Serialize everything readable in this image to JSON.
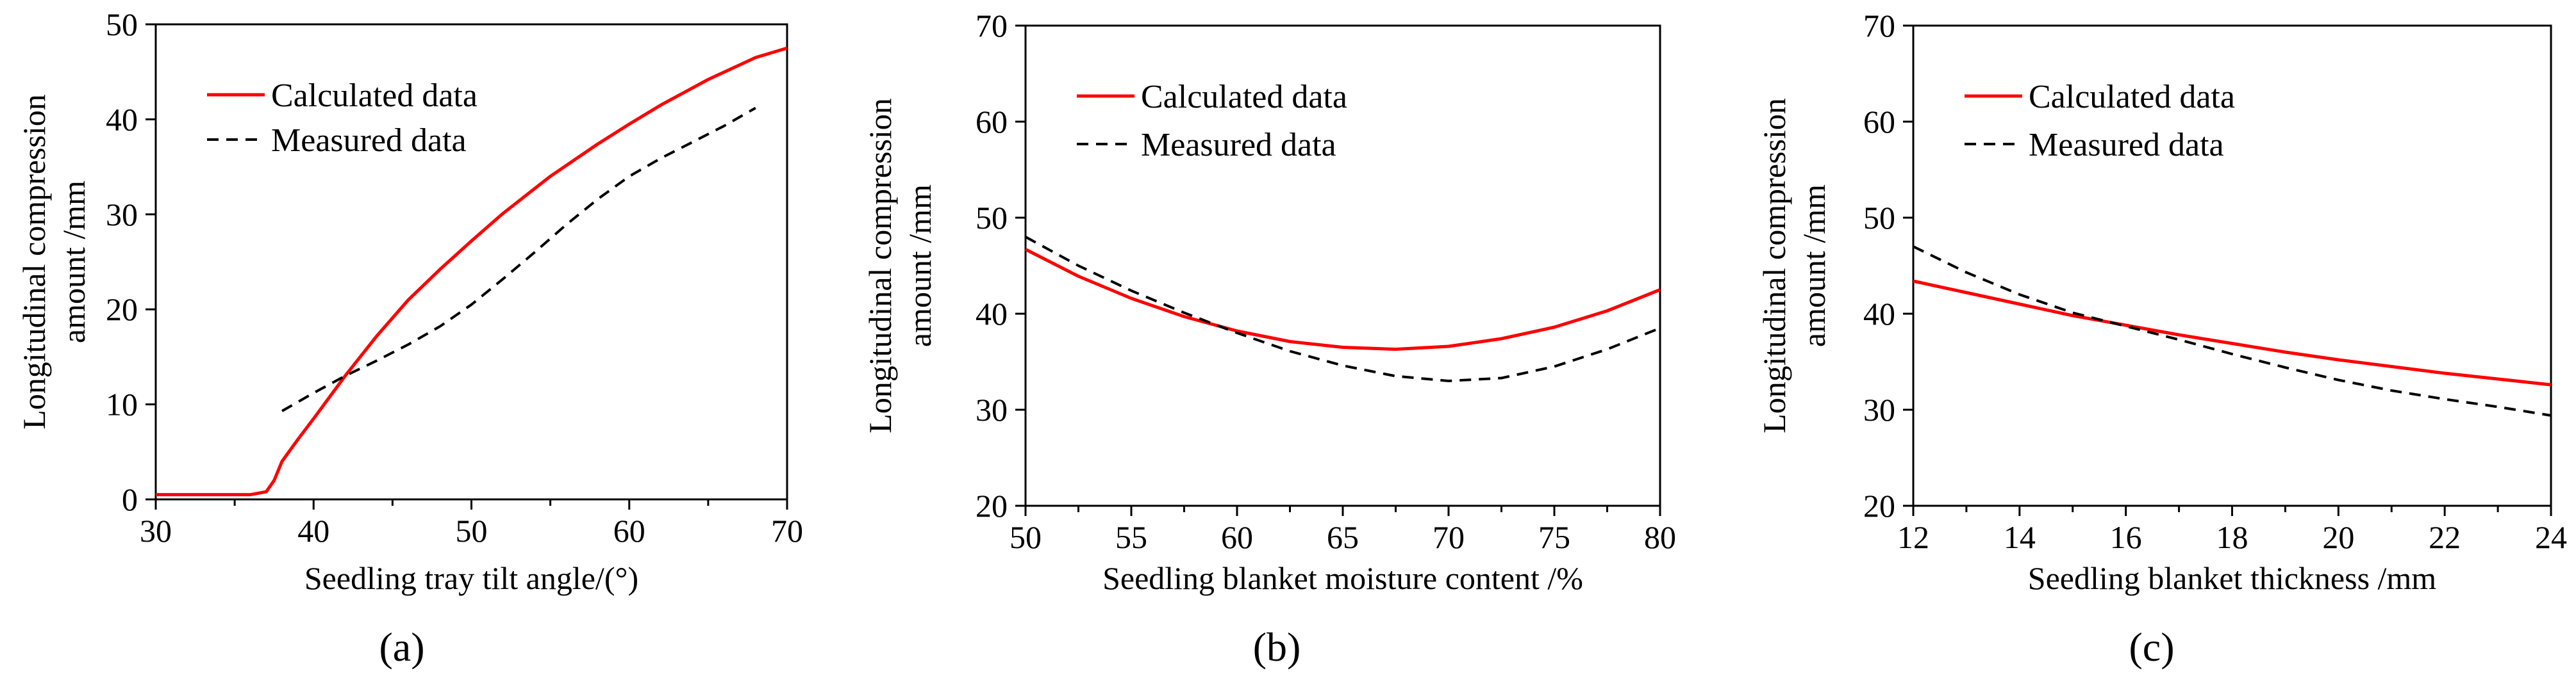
{
  "figure": {
    "panel_labels": [
      "(a)",
      "(b)",
      "(c)"
    ]
  },
  "chart_data": [
    {
      "type": "line",
      "xlabel": "Seedling tray tilt  angle/(°)",
      "ylabel": [
        "Longitudinal compression",
        "amount /mm"
      ],
      "xlim": [
        30,
        70
      ],
      "ylim": [
        0,
        50
      ],
      "xticks": [
        30,
        40,
        50,
        60,
        70
      ],
      "yticks": [
        0,
        10,
        20,
        30,
        40,
        50
      ],
      "legend": "top-left",
      "series": [
        {
          "name": "Calculated data",
          "style": "solid",
          "color": "#ff0000",
          "x": [
            30,
            36,
            37,
            37.5,
            38,
            39,
            40,
            42,
            44,
            46,
            48,
            50,
            52,
            55,
            58,
            60,
            62,
            65,
            68,
            70
          ],
          "y": [
            0.5,
            0.5,
            0.8,
            2,
            4,
            6.3,
            8.5,
            13,
            17.2,
            21,
            24.2,
            27.2,
            30.1,
            34,
            37.4,
            39.5,
            41.5,
            44.2,
            46.5,
            47.5
          ]
        },
        {
          "name": "Measured data",
          "style": "dashed",
          "color": "#000000",
          "x": [
            38,
            40,
            42,
            44,
            46,
            48,
            50,
            52,
            54,
            56,
            58,
            60,
            62,
            64,
            66,
            68
          ],
          "y": [
            9.3,
            11.2,
            13,
            14.6,
            16.3,
            18.2,
            20.5,
            23.2,
            26,
            28.9,
            31.6,
            34,
            35.9,
            37.6,
            39.3,
            41.2
          ]
        }
      ]
    },
    {
      "type": "line",
      "xlabel": "Seedling blanket moisture content /%",
      "ylabel": [
        "Longitudinal compression",
        "amount /mm"
      ],
      "xlim": [
        50,
        80
      ],
      "ylim": [
        20,
        70
      ],
      "xticks": [
        50,
        55,
        60,
        65,
        70,
        75,
        80
      ],
      "yticks": [
        20,
        30,
        40,
        50,
        60,
        70
      ],
      "legend": "top-left",
      "series": [
        {
          "name": "Calculated data",
          "style": "solid",
          "color": "#ff0000",
          "x": [
            50,
            52.5,
            55,
            57.5,
            60,
            62.5,
            65,
            67.5,
            70,
            72.5,
            75,
            77.5,
            80
          ],
          "y": [
            46.7,
            43.9,
            41.6,
            39.7,
            38.2,
            37.1,
            36.5,
            36.3,
            36.6,
            37.4,
            38.6,
            40.3,
            42.5
          ]
        },
        {
          "name": "Measured data",
          "style": "dashed",
          "color": "#000000",
          "x": [
            50,
            52.5,
            55,
            57.5,
            60,
            62.5,
            65,
            67.5,
            70,
            72.5,
            75,
            77.5,
            80
          ],
          "y": [
            48,
            45,
            42.4,
            40.1,
            38,
            36.1,
            34.6,
            33.5,
            33,
            33.3,
            34.5,
            36.3,
            38.5
          ]
        }
      ]
    },
    {
      "type": "line",
      "xlabel": "Seedling blanket thickness /mm",
      "ylabel": [
        "Longitudinal compression",
        "amount /mm"
      ],
      "xlim": [
        12,
        24
      ],
      "ylim": [
        20,
        70
      ],
      "xticks": [
        12,
        14,
        16,
        18,
        20,
        22,
        24
      ],
      "yticks": [
        20,
        30,
        40,
        50,
        60,
        70
      ],
      "legend": "top-left",
      "series": [
        {
          "name": "Calculated data",
          "style": "solid",
          "color": "#ff0000",
          "x": [
            12,
            13,
            14,
            15,
            16,
            17,
            18,
            19,
            20,
            21,
            22,
            23,
            24
          ],
          "y": [
            43.4,
            42.2,
            41,
            39.8,
            38.8,
            37.8,
            36.9,
            36,
            35.2,
            34.5,
            33.8,
            33.2,
            32.6
          ]
        },
        {
          "name": "Measured data",
          "style": "dashed",
          "color": "#000000",
          "x": [
            12,
            13,
            14,
            15,
            16,
            17,
            18,
            19,
            20,
            21,
            22,
            23,
            24
          ],
          "y": [
            47,
            44.3,
            42,
            40.1,
            38.7,
            37.3,
            35.8,
            34.4,
            33.1,
            32,
            31.1,
            30.3,
            29.4
          ]
        }
      ]
    }
  ]
}
